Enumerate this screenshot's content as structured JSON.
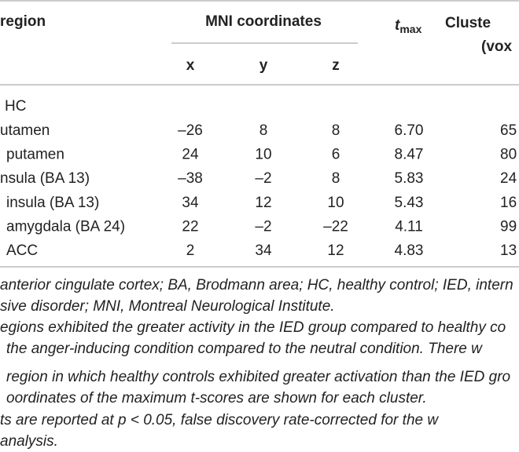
{
  "header": {
    "region": "region",
    "mni": "MNI coordinates",
    "t": "t",
    "t_sub": "max",
    "cluster_1": "Cluste",
    "cluster_2": "(vox",
    "x": "x",
    "y": "y",
    "z": "z"
  },
  "group": "HC",
  "table": {
    "rows": [
      [
        "utamen",
        "–26",
        "8",
        "8",
        "6.70",
        "65"
      ],
      [
        "putamen",
        "24",
        "10",
        "6",
        "8.47",
        "80"
      ],
      [
        "nsula (BA 13)",
        "–38",
        "–2",
        "8",
        "5.83",
        "24"
      ],
      [
        "insula (BA 13)",
        "34",
        "12",
        "10",
        "5.43",
        "16"
      ],
      [
        "amygdala (BA 24)",
        "22",
        "–2",
        "–22",
        "4.11",
        "99"
      ],
      [
        "ACC",
        "2",
        "34",
        "12",
        "4.83",
        "13"
      ]
    ]
  },
  "notes": [
    "anterior cingulate cortex; BA, Brodmann area; HC, healthy control; IED, intern",
    "sive disorder; MNI, Montreal Neurological Institute.",
    "egions exhibited the greater activity in the IED group compared to healthy co",
    "the anger-inducing condition compared to the neutral condition. There w",
    "region in which healthy controls exhibited greater activation than the IED gro",
    "oordinates of the maximum t-scores are shown for each cluster.",
    "ts are reported at p < 0.05, false discovery rate-corrected for the w",
    "analysis."
  ]
}
